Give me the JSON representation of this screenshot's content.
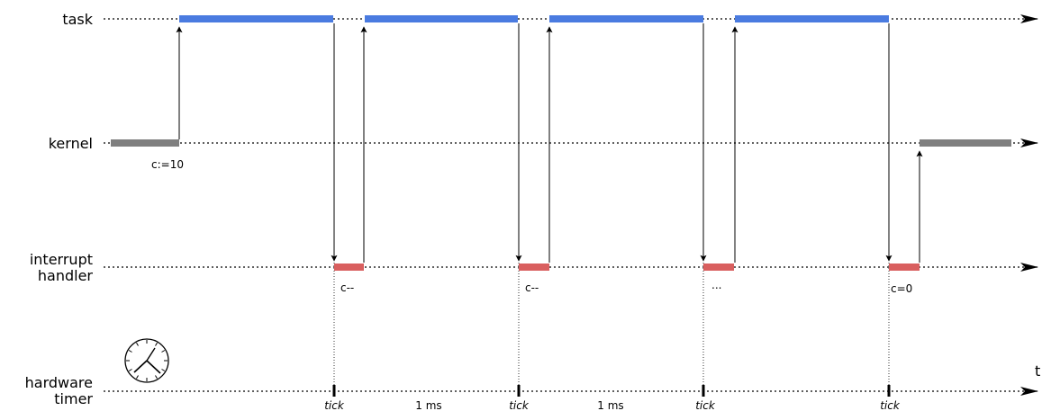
{
  "lanes": {
    "task": "task",
    "kernel": "kernel",
    "interrupt_line1": "interrupt",
    "interrupt_line2": "handler",
    "hardware_line1": "hardware",
    "hardware_line2": "timer"
  },
  "time_axis_label": "t",
  "annotations": {
    "kernel_set": "c:=10",
    "handler_1": "c--",
    "handler_2": "c--",
    "handler_3": "...",
    "handler_4": "c=0"
  },
  "ticks": [
    "tick",
    "tick",
    "tick",
    "tick"
  ],
  "intervals": [
    "1 ms",
    "1 ms"
  ],
  "colors": {
    "task": "#4a7be0",
    "kernel": "#7f7f7f",
    "interrupt": "#d95f5f",
    "line": "#000000"
  },
  "icons": {
    "clock": "clock-icon"
  }
}
